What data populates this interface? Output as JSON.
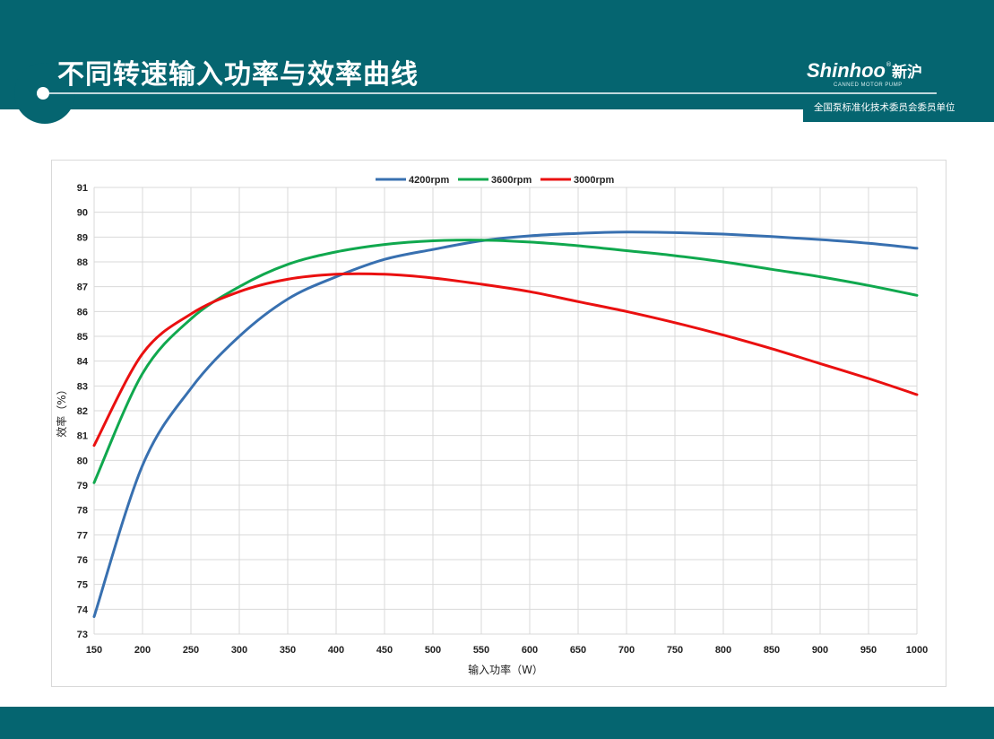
{
  "slide": {
    "title": "不同转速输入功率与效率曲线",
    "brand_latin": "Shinhoo",
    "brand_reg": "®",
    "brand_cn": "新沪",
    "brand_sub": "CANNED MOTOR PUMP",
    "tagline": "全国泵标准化技术委员会委员单位"
  },
  "colors": {
    "band": "#056570",
    "s4200": "#3870B0",
    "s3600": "#10A84E",
    "s3000": "#EA1010",
    "grid": "#d9d9d9"
  },
  "chart_data": {
    "type": "line",
    "title": "",
    "xlabel": "输入功率（W）",
    "ylabel": "效率（%）",
    "xlim": [
      150,
      1000
    ],
    "ylim": [
      73,
      91
    ],
    "xticks": [
      150,
      200,
      250,
      300,
      350,
      400,
      450,
      500,
      550,
      600,
      650,
      700,
      750,
      800,
      850,
      900,
      950,
      1000
    ],
    "yticks": [
      73,
      74,
      75,
      76,
      77,
      78,
      79,
      80,
      81,
      82,
      83,
      84,
      85,
      86,
      87,
      88,
      89,
      90,
      91
    ],
    "grid": true,
    "legend_position": "top",
    "x": [
      150,
      200,
      250,
      300,
      350,
      400,
      450,
      500,
      550,
      600,
      650,
      700,
      750,
      800,
      850,
      900,
      950,
      1000
    ],
    "series": [
      {
        "name": "4200rpm",
        "color": "#3870B0",
        "values": [
          73.7,
          79.8,
          82.9,
          85.0,
          86.5,
          87.4,
          88.1,
          88.5,
          88.85,
          89.05,
          89.15,
          89.2,
          89.18,
          89.12,
          89.02,
          88.9,
          88.75,
          88.55
        ]
      },
      {
        "name": "3600rpm",
        "color": "#10A84E",
        "values": [
          79.1,
          83.5,
          85.7,
          87.0,
          87.9,
          88.4,
          88.7,
          88.85,
          88.88,
          88.8,
          88.65,
          88.45,
          88.25,
          88.0,
          87.7,
          87.4,
          87.05,
          86.65
        ]
      },
      {
        "name": "3000rpm",
        "color": "#EA1010",
        "values": [
          80.6,
          84.3,
          85.9,
          86.8,
          87.3,
          87.5,
          87.5,
          87.35,
          87.1,
          86.8,
          86.4,
          86.0,
          85.55,
          85.05,
          84.5,
          83.9,
          83.3,
          82.65
        ]
      }
    ]
  }
}
